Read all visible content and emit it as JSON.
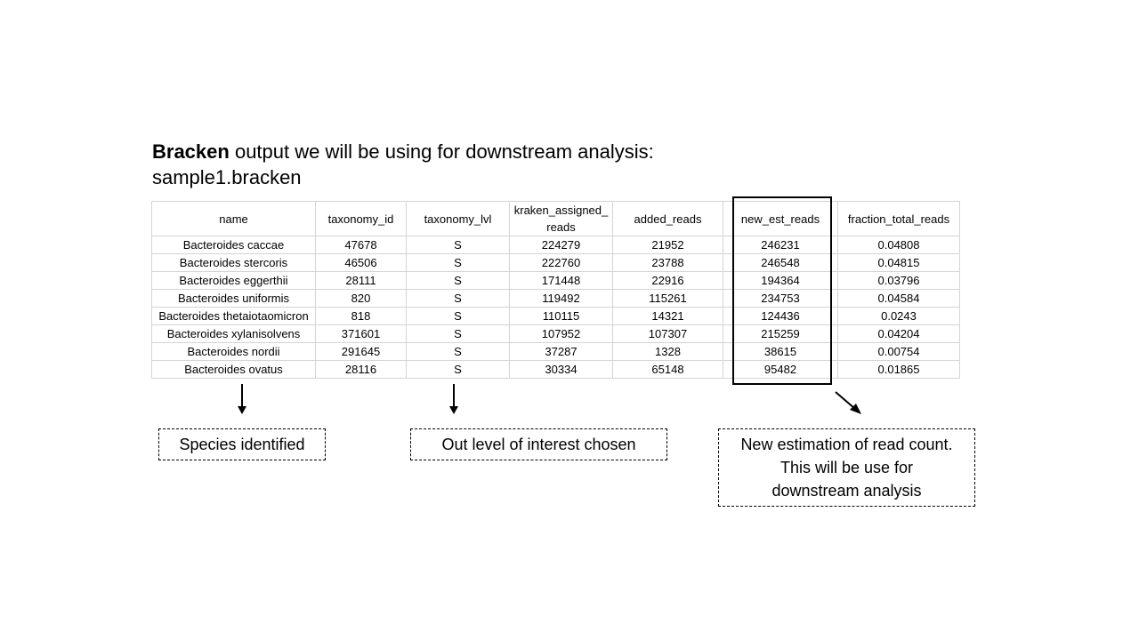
{
  "heading": {
    "bold": "Bracken",
    "rest": " output we will be using for downstream analysis:",
    "file": "sample1.bracken"
  },
  "table": {
    "columns": [
      "name",
      "taxonomy_id",
      "taxonomy_lvl",
      "kraken_assigned_ reads",
      "added_reads",
      "new_est_reads",
      "fraction_total_reads"
    ],
    "rows": [
      [
        "Bacteroides caccae",
        "47678",
        "S",
        "224279",
        "21952",
        "246231",
        "0.04808"
      ],
      [
        "Bacteroides stercoris",
        "46506",
        "S",
        "222760",
        "23788",
        "246548",
        "0.04815"
      ],
      [
        "Bacteroides eggerthii",
        "28111",
        "S",
        "171448",
        "22916",
        "194364",
        "0.03796"
      ],
      [
        "Bacteroides uniformis",
        "820",
        "S",
        "119492",
        "115261",
        "234753",
        "0.04584"
      ],
      [
        "Bacteroides thetaiotaomicron",
        "818",
        "S",
        "110115",
        "14321",
        "124436",
        "0.0243"
      ],
      [
        "Bacteroides xylanisolvens",
        "371601",
        "S",
        "107952",
        "107307",
        "215259",
        "0.04204"
      ],
      [
        "Bacteroides nordii",
        "291645",
        "S",
        "37287",
        "1328",
        "38615",
        "0.00754"
      ],
      [
        "Bacteroides ovatus",
        "28116",
        "S",
        "30334",
        "65148",
        "95482",
        "0.01865"
      ]
    ]
  },
  "annotations": {
    "species": "Species identified",
    "level": "Out level of interest chosen",
    "new_estimation": "New estimation of read count.\nThis will be use for\ndownstream analysis"
  }
}
